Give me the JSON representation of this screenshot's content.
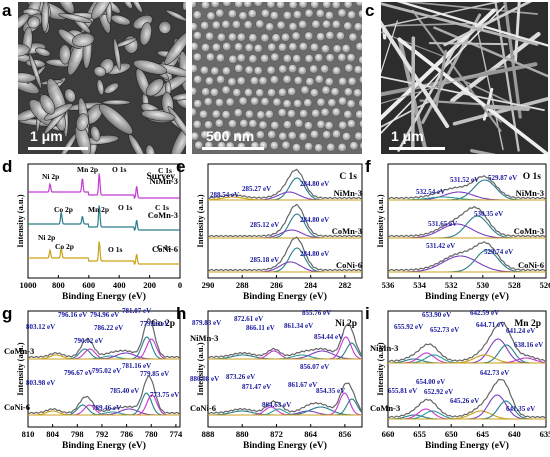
{
  "panels": {
    "a": {
      "label": "a",
      "scale": "1 μm"
    },
    "b": {
      "label": "b",
      "scale": "500 nm"
    },
    "c": {
      "label": "c",
      "scale": "1 μm"
    },
    "d": {
      "label": "d"
    },
    "e": {
      "label": "e"
    },
    "f": {
      "label": "f"
    },
    "g": {
      "label": "g"
    },
    "h": {
      "label": "h"
    },
    "i": {
      "label": "i"
    }
  },
  "chart_data": [
    {
      "id": "d",
      "type": "line",
      "title": "Survey",
      "xlabel": "Binding Energy (eV)",
      "ylabel": "Intensity (a.u.)",
      "xlim": [
        1000,
        0
      ],
      "xticks": [
        "1000",
        "800",
        "600",
        "400",
        "200",
        "0"
      ],
      "series": [
        {
          "name": "NiMn-3",
          "color": "#c23bd1"
        },
        {
          "name": "CoMn-3",
          "color": "#2a7d8c"
        },
        {
          "name": "CoNi-6",
          "color": "#c9a218"
        }
      ],
      "annotations": [
        "Ni 2p",
        "Mn 2p",
        "O 1s",
        "C 1s",
        "Co 2p",
        "Mn 2p",
        "O 1s",
        "C 1s",
        "Ni 2p",
        "Co 2p",
        "O 1s",
        "C 1s"
      ]
    },
    {
      "id": "e",
      "type": "line",
      "title": "C 1s",
      "xlabel": "Binding Energy (eV)",
      "ylabel": "Intensity (a.u.)",
      "xlim": [
        290,
        281
      ],
      "xticks": [
        "290",
        "288",
        "286",
        "284",
        "282"
      ],
      "series": [
        {
          "name": "NiMn-3"
        },
        {
          "name": "CoMn-3"
        },
        {
          "name": "CoNi-6"
        }
      ],
      "peaks": {
        "NiMn-3": [
          288.54,
          285.27,
          284.8
        ],
        "CoMn-3": [
          285.12,
          284.8
        ],
        "CoNi-6": [
          285.18,
          284.8
        ]
      },
      "annotations": [
        "288.54 eV",
        "285.27 eV",
        "284.80 eV",
        "285.12 eV",
        "284.80 eV",
        "285.18 eV",
        "284.80 eV"
      ]
    },
    {
      "id": "f",
      "type": "line",
      "title": "O 1s",
      "xlabel": "Binding Energy (eV)",
      "ylabel": "Intensity (a.u.)",
      "xlim": [
        536,
        526
      ],
      "xticks": [
        "536",
        "534",
        "532",
        "530",
        "528",
        "526"
      ],
      "series": [
        {
          "name": "NiMn-3"
        },
        {
          "name": "CoMn-3"
        },
        {
          "name": "CoNi-6"
        }
      ],
      "peaks": {
        "NiMn-3": [
          532.54,
          531.52,
          529.87
        ],
        "CoMn-3": [
          531.65,
          530.35
        ],
        "CoNi-6": [
          531.42,
          529.74
        ]
      },
      "annotations": [
        "531.52 eV",
        "529.87 eV",
        "532.54 eV",
        "530.35 eV",
        "531.65 eV",
        "531.42 eV",
        "529.74 eV"
      ]
    },
    {
      "id": "g",
      "type": "line",
      "title": "Co 2p",
      "xlabel": "Binding Energy (eV)",
      "ylabel": "Intensity (a.u.)",
      "xlim": [
        810,
        773
      ],
      "xticks": [
        "810",
        "804",
        "798",
        "792",
        "786",
        "780",
        "774"
      ],
      "series": [
        {
          "name": "CoMn-3"
        },
        {
          "name": "CoNi-6"
        }
      ],
      "peaks": {
        "CoMn-3": [
          803.12,
          796.16,
          794.96,
          790.02,
          786.22,
          781.07,
          779.96
        ],
        "CoNi-6": [
          803.98,
          796.67,
          795.02,
          789.46,
          785.4,
          781.16,
          779.85,
          773.75
        ]
      },
      "annotations": [
        "796.16 eV",
        "794.96 eV",
        "781.07 eV",
        "803.12 eV",
        "786.22 eV",
        "779.96 eV",
        "790.02 eV",
        "781.16 eV",
        "796.67 eV",
        "795.02 eV",
        "779.85 eV",
        "803.98 eV",
        "785.40 eV",
        "789.46 eV",
        "773.75 eV"
      ]
    },
    {
      "id": "h",
      "type": "line",
      "title": "Ni 2p",
      "xlabel": "Binding Energy (eV)",
      "ylabel": "Intensity (a.u.)",
      "xlim": [
        888,
        852
      ],
      "xticks": [
        "888",
        "880",
        "872",
        "864",
        "856"
      ],
      "series": [
        {
          "name": "NiMn-3"
        },
        {
          "name": "CoNi-6"
        }
      ],
      "peaks": {
        "NiMn-3": [
          879.83,
          872.61,
          866.11,
          861.34,
          855.76,
          854.44
        ],
        "CoNi-6": [
          880.08,
          873.26,
          871.47,
          864.63,
          861.67,
          856.07,
          854.35
        ]
      },
      "annotations": [
        "855.76 eV",
        "879.83 eV",
        "872.61 eV",
        "861.34 eV",
        "866.11 eV",
        "854.44 eV",
        "856.07 eV",
        "880.08 eV",
        "873.26 eV",
        "861.67 eV",
        "871.47 eV",
        "854.35 eV",
        "864.63 eV"
      ]
    },
    {
      "id": "i",
      "type": "line",
      "title": "Mn 2p",
      "xlabel": "Binding Energy (eV)",
      "ylabel": "Intensity (a.u.)",
      "xlim": [
        660,
        635
      ],
      "xticks": [
        "660",
        "655",
        "650",
        "645",
        "640",
        "635"
      ],
      "series": [
        {
          "name": "NiMn-3"
        },
        {
          "name": "CoMn-3"
        }
      ],
      "peaks": {
        "NiMn-3": [
          655.92,
          653.9,
          652.73,
          642.59,
          644.71,
          641.24,
          638.16
        ],
        "CoMn-3": [
          655.81,
          654.0,
          652.92,
          645.26,
          642.73,
          641.35
        ]
      },
      "annotations": [
        "653.90 eV",
        "642.59 eV",
        "655.92 eV",
        "644.71 eV",
        "652.73 eV",
        "641.24 eV",
        "638.16 eV",
        "642.73 eV",
        "654.00 eV",
        "655.81 eV",
        "652.92 eV",
        "645.26 eV",
        "641.35 eV"
      ]
    }
  ]
}
